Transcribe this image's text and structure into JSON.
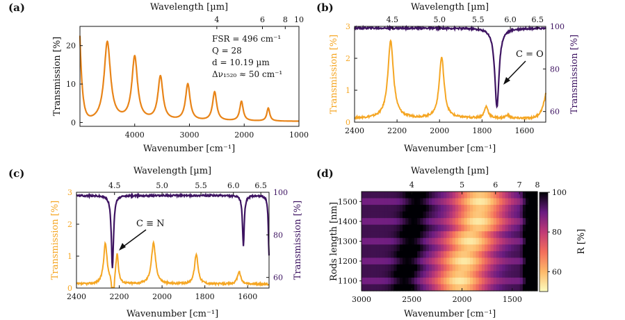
{
  "colors": {
    "orange": "#e88418",
    "yellow": "#f5a623",
    "purple": "#3d1361",
    "text": "#111111"
  },
  "panels": {
    "a": {
      "letter": "(a)",
      "annotations": [
        "FSR = 496 cm⁻¹",
        "Q = 28",
        "d = 10.19 µm",
        "Δν₁₅₂₀ ≈ 50 cm⁻¹"
      ]
    },
    "b": {
      "letter": "(b)",
      "annotation": "C = O"
    },
    "c": {
      "letter": "(c)",
      "annotation": "C ≡ N"
    },
    "d": {
      "letter": "(d)"
    }
  },
  "chart_data": [
    {
      "id": "a",
      "type": "line",
      "xlabel": "Wavenumber [cm⁻¹]",
      "ylabel": "Transmission [%]",
      "top_xlabel": "Wavelength [µm]",
      "xlim": [
        5000,
        1000
      ],
      "ylim": [
        -1,
        25
      ],
      "xticks": [
        4000,
        3000,
        2000,
        1000
      ],
      "yticks": [
        0,
        10,
        20
      ],
      "top_ticks": [
        4,
        6,
        8,
        10
      ],
      "series": [
        {
          "name": "transmission",
          "baseline": 0.3,
          "peaks": [
            {
              "x": 4500,
              "y": 20.8,
              "w": 70
            },
            {
              "x": 4000,
              "y": 16.8,
              "w": 62
            },
            {
              "x": 3530,
              "y": 11.7,
              "w": 55
            },
            {
              "x": 3030,
              "y": 9.8,
              "w": 50
            },
            {
              "x": 2540,
              "y": 7.8,
              "w": 45
            },
            {
              "x": 2050,
              "y": 5.4,
              "w": 38
            },
            {
              "x": 1560,
              "y": 3.7,
              "w": 32
            }
          ],
          "start_value": 24.5
        }
      ]
    },
    {
      "id": "b",
      "type": "line",
      "xlabel": "Wavenumber [cm⁻¹]",
      "ylabel_left": "Transmission [%]",
      "ylabel_right": "Transmission [%]",
      "top_xlabel": "Wavelength [µm]",
      "xlim": [
        2400,
        1500
      ],
      "ylim_left": [
        0,
        3
      ],
      "ylim_right": [
        55,
        100
      ],
      "xticks": [
        2400,
        2200,
        2000,
        1800,
        1600
      ],
      "yticks_left": [
        0,
        1,
        2,
        3
      ],
      "yticks_right": [
        60,
        80,
        100
      ],
      "top_ticks": [
        4.5,
        5.0,
        5.5,
        6.0,
        6.5
      ],
      "series": [
        {
          "name": "cavity",
          "axis": "left",
          "baseline": 0.12,
          "peaks": [
            {
              "x": 2230,
              "y": 2.52,
              "w": 16
            },
            {
              "x": 1990,
              "y": 2.02,
              "w": 14
            },
            {
              "x": 1780,
              "y": 0.48,
              "w": 11
            },
            {
              "x": 1680,
              "y": 0.22,
              "w": 10
            }
          ],
          "end_rise": [
            1500,
            0.8
          ]
        },
        {
          "name": "bare",
          "axis": "right",
          "baseline": 99.2,
          "dips": [
            {
              "x": 1730,
              "y": 62,
              "w": 12
            }
          ]
        }
      ]
    },
    {
      "id": "c",
      "type": "line",
      "xlabel": "Wavenumber [cm⁻¹]",
      "ylabel_left": "Transmission [%]",
      "ylabel_right": "Transmission [%]",
      "top_xlabel": "Wavelength [µm]",
      "xlim": [
        2400,
        1500
      ],
      "ylim_left": [
        0,
        3
      ],
      "ylim_right": [
        55,
        100
      ],
      "xticks": [
        2400,
        2200,
        2000,
        1800,
        1600
      ],
      "yticks_left": [
        0,
        1,
        2,
        3
      ],
      "yticks_right": [
        60,
        80,
        100
      ],
      "top_ticks": [
        4.5,
        5.0,
        5.5,
        6.0,
        6.5
      ],
      "series": [
        {
          "name": "cavity",
          "axis": "left",
          "baseline": 0.12,
          "peaks": [
            {
              "x": 2265,
              "y": 1.38,
              "w": 10
            },
            {
              "x": 2210,
              "y": 1.05,
              "w": 7
            },
            {
              "x": 2040,
              "y": 1.4,
              "w": 12
            },
            {
              "x": 1840,
              "y": 1.05,
              "w": 10
            },
            {
              "x": 1640,
              "y": 0.52,
              "w": 9
            }
          ],
          "dip_near": [
            2230,
            0.05
          ]
        },
        {
          "name": "bare",
          "axis": "right",
          "baseline": 98.5,
          "dips": [
            {
              "x": 2232,
              "y": 64,
              "w": 6
            },
            {
              "x": 1620,
              "y": 75,
              "w": 5
            },
            {
              "x": 1500,
              "y": 70,
              "w": 4
            }
          ]
        }
      ]
    },
    {
      "id": "d",
      "type": "heatmap",
      "xlabel": "Wavenumber [cm⁻¹]",
      "ylabel": "Rods length [nm]",
      "top_xlabel": "Wavelength [µm]",
      "colorbar_label": "R [%]",
      "xlim": [
        3000,
        1250
      ],
      "xticks": [
        3000,
        2500,
        2000,
        1500
      ],
      "yticks": [
        1100,
        1200,
        1300,
        1400,
        1500
      ],
      "top_ticks": [
        4,
        5,
        6,
        7,
        8
      ],
      "colorbar_ticks": [
        60,
        80,
        100
      ],
      "rows": [
        1500,
        1400,
        1300,
        1200,
        1100
      ],
      "min_centers": [
        1820,
        1840,
        1920,
        1980,
        2020
      ]
    }
  ]
}
